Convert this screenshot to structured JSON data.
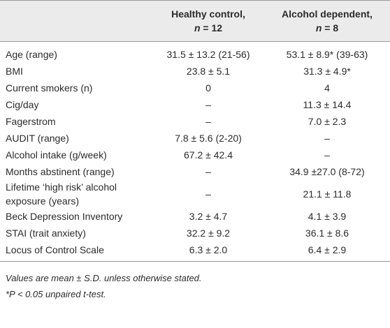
{
  "table": {
    "columns": [
      {
        "label": "Healthy control,",
        "n_label": "n",
        "n_value": "= 12"
      },
      {
        "label": "Alcohol dependent,",
        "n_label": "n",
        "n_value": "= 8"
      }
    ],
    "rows": [
      [
        "Age (range)",
        "31.5 ± 13.2 (21-56)",
        "53.1 ± 8.9* (39-63)"
      ],
      [
        "BMI",
        "23.8 ± 5.1",
        "31.3 ± 4.9*"
      ],
      [
        "Current smokers (n)",
        "0",
        "4"
      ],
      [
        "Cig/day",
        "–",
        "11.3 ± 14.4"
      ],
      [
        "Fagerstrom",
        "–",
        "7.0 ± 2.3"
      ],
      [
        "AUDIT (range)",
        "7.8 ± 5.6 (2-20)",
        "–"
      ],
      [
        "Alcohol intake (g/week)",
        "67.2 ± 42.4",
        "–"
      ],
      [
        "Months abstinent (range)",
        "–",
        "34.9 ±27.0 (8-72)"
      ],
      [
        "Lifetime ‘high risk’ alcohol exposure (years)",
        "–",
        "21.1 ± 11.8"
      ],
      [
        "Beck Depression Inventory",
        "3.2 ± 4.7",
        "4.1 ± 3.9"
      ],
      [
        "STAI (trait anxiety)",
        "32.2 ± 9.2",
        "36.1 ± 8.6"
      ],
      [
        "Locus of Control Scale",
        "6.3 ± 2.0",
        "6.4 ± 2.9"
      ]
    ]
  },
  "footnotes": [
    "Values are mean ± S.D. unless otherwise stated.",
    "*P < 0.05 unpaired t-test."
  ]
}
